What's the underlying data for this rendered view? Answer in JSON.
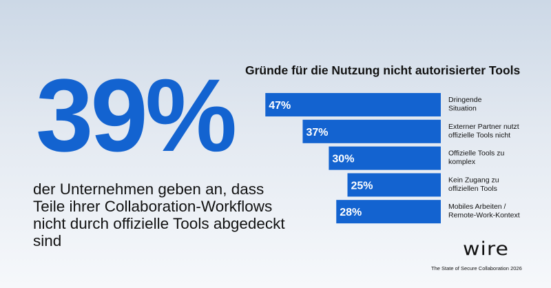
{
  "headline": {
    "value": "39%",
    "statement": "der Unternehmen geben an, dass Teile ihrer Collaboration-Workflows nicht durch offizielle Tools abgedeckt sind"
  },
  "chart_data": {
    "type": "bar",
    "orientation": "horizontal",
    "title": "Gründe für die Nutzung nicht autorisierter Tools",
    "categories": [
      "Dringende Situation",
      "Externer Partner nutzt offizielle Tools nicht",
      "Offizielle Tools zu komplex",
      "Kein Zugang zu offiziellen Tools",
      "Mobiles Arbeiten / Remote-Work-Kontext"
    ],
    "label_lines": [
      [
        "Dringende",
        "Situation"
      ],
      [
        "Externer Partner nutzt",
        "offizielle Tools nicht"
      ],
      [
        "Offizielle Tools zu",
        "komplex"
      ],
      [
        "Kein Zugang zu",
        "offiziellen Tools"
      ],
      [
        "Mobiles Arbeiten /",
        "Remote-Work-Kontext"
      ]
    ],
    "values": [
      47,
      37,
      30,
      25,
      28
    ],
    "value_labels": [
      "47%",
      "37%",
      "30%",
      "25%",
      "28%"
    ],
    "unit": "%",
    "bar_color": "#1363d0",
    "grid": false,
    "legend": "none",
    "alignment": "bars right-aligned, labels to the right"
  },
  "brand": {
    "logo_text": "wire",
    "report_name": "The State of Secure Collaboration 2026"
  },
  "colors": {
    "accent": "#1363d0",
    "text": "#111111"
  }
}
